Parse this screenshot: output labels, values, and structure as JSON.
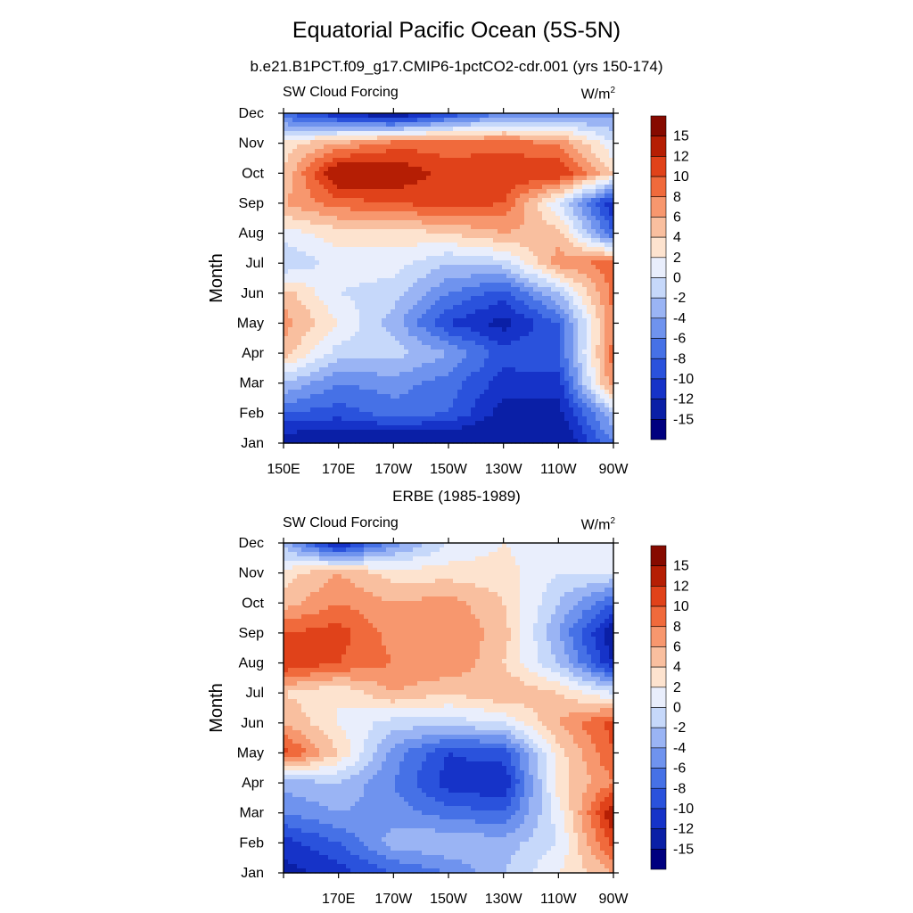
{
  "figure": {
    "title": "Equatorial Pacific Ocean (5S-5N)",
    "colors": {
      "contour_levels": [
        -15,
        -12,
        -10,
        -8,
        -6,
        -4,
        -2,
        0,
        2,
        4,
        6,
        8,
        10,
        12,
        15
      ],
      "palette": [
        "#00007f",
        "#0a1fa6",
        "#1633c8",
        "#2a52dc",
        "#4671e6",
        "#6f93ee",
        "#9ab4f4",
        "#c6d8fa",
        "#e9eefc",
        "#fde3cf",
        "#f9bf9f",
        "#f7976e",
        "#f06a3c",
        "#e0421a",
        "#b51e04",
        "#860a00"
      ]
    }
  },
  "panels": [
    {
      "title": "b.e21.B1PCT.f09_g17.CMIP6-1pctCO2-cdr.001 (yrs 150-174)",
      "left_string": "SW Cloud Forcing",
      "units_base": "W/m",
      "units_sup": "2",
      "chart_data": {
        "type": "heatmap",
        "xlabel": "",
        "ylabel": "Month",
        "x_ticks": [
          "150E",
          "170E",
          "170W",
          "150W",
          "130W",
          "110W",
          "90W"
        ],
        "y_ticks": [
          "Jan",
          "Feb",
          "Mar",
          "Apr",
          "May",
          "Jun",
          "Jul",
          "Aug",
          "Sep",
          "Oct",
          "Nov",
          "Dec"
        ],
        "colorbar_labels": [
          "15",
          "12",
          "10",
          "8",
          "6",
          "4",
          "2",
          "0",
          "-2",
          "-4",
          "-6",
          "-8",
          "-10",
          "-12",
          "-15"
        ],
        "units": "W/m2",
        "x_lon_range": [
          150,
          270
        ],
        "x_grid_lon": [
          150,
          170,
          190,
          210,
          230,
          250,
          270
        ],
        "z": [
          [
            -14,
            -15,
            -15,
            -15,
            -15,
            -15,
            -6
          ],
          [
            -8,
            -9,
            -7,
            -8,
            -13,
            -13,
            -2
          ],
          [
            -2,
            -6,
            -5,
            -7,
            -11,
            -11,
            8
          ],
          [
            5,
            -1,
            -1,
            -4,
            -9,
            -8,
            9
          ],
          [
            7,
            2,
            -3,
            -10,
            -13,
            -8,
            8
          ],
          [
            5,
            0,
            -1,
            -6,
            -9,
            -2,
            9
          ],
          [
            -2,
            1,
            1,
            -2,
            -1,
            7,
            9
          ],
          [
            1,
            3,
            3,
            4,
            6,
            5,
            -8
          ],
          [
            6,
            9,
            10,
            11,
            10,
            0,
            -12
          ],
          [
            4,
            15,
            14,
            11,
            12,
            12,
            4
          ],
          [
            3,
            6,
            9,
            9,
            9,
            8,
            0
          ],
          [
            -8,
            -12,
            -15,
            -10,
            -6,
            -6,
            -5
          ]
        ]
      }
    },
    {
      "title": "ERBE (1985-1989)",
      "left_string": "SW Cloud Forcing",
      "units_base": "W/m",
      "units_sup": "2",
      "chart_data": {
        "type": "heatmap",
        "xlabel": "",
        "ylabel": "Month",
        "x_ticks": [
          "170E",
          "170W",
          "150W",
          "130W",
          "110W",
          "90W"
        ],
        "y_ticks": [
          "Jan",
          "Feb",
          "Mar",
          "Apr",
          "May",
          "Jun",
          "Jul",
          "Aug",
          "Sep",
          "Oct",
          "Nov",
          "Dec"
        ],
        "colorbar_labels": [
          "15",
          "12",
          "10",
          "8",
          "6",
          "4",
          "2",
          "0",
          "-2",
          "-4",
          "-6",
          "-8",
          "-10",
          "-12",
          "-15"
        ],
        "units": "W/m2",
        "x_lon_range": [
          150,
          270
        ],
        "x_grid_lon": [
          150,
          170,
          190,
          210,
          230,
          250,
          270
        ],
        "z": [
          [
            -13,
            -11,
            -8,
            -6,
            -2,
            2,
            6
          ],
          [
            -11,
            -8,
            -3,
            -2,
            -3,
            0,
            11
          ],
          [
            -6,
            -4,
            -5,
            -7,
            -8,
            1,
            14
          ],
          [
            -3,
            -2,
            -6,
            -11,
            -12,
            3,
            8
          ],
          [
            11,
            4,
            -5,
            -10,
            -9,
            3,
            10
          ],
          [
            6,
            2,
            -1,
            -1,
            0,
            6,
            11
          ],
          [
            4,
            2,
            6,
            4,
            6,
            4,
            0
          ],
          [
            12,
            10,
            8,
            8,
            4,
            -2,
            -12
          ],
          [
            10,
            11,
            7,
            8,
            5,
            -4,
            -14
          ],
          [
            5,
            8,
            6,
            7,
            4,
            -2,
            -8
          ],
          [
            3,
            6,
            3,
            3,
            3,
            0,
            0
          ],
          [
            -3,
            -13,
            -5,
            0,
            2,
            0,
            2
          ]
        ]
      }
    }
  ]
}
